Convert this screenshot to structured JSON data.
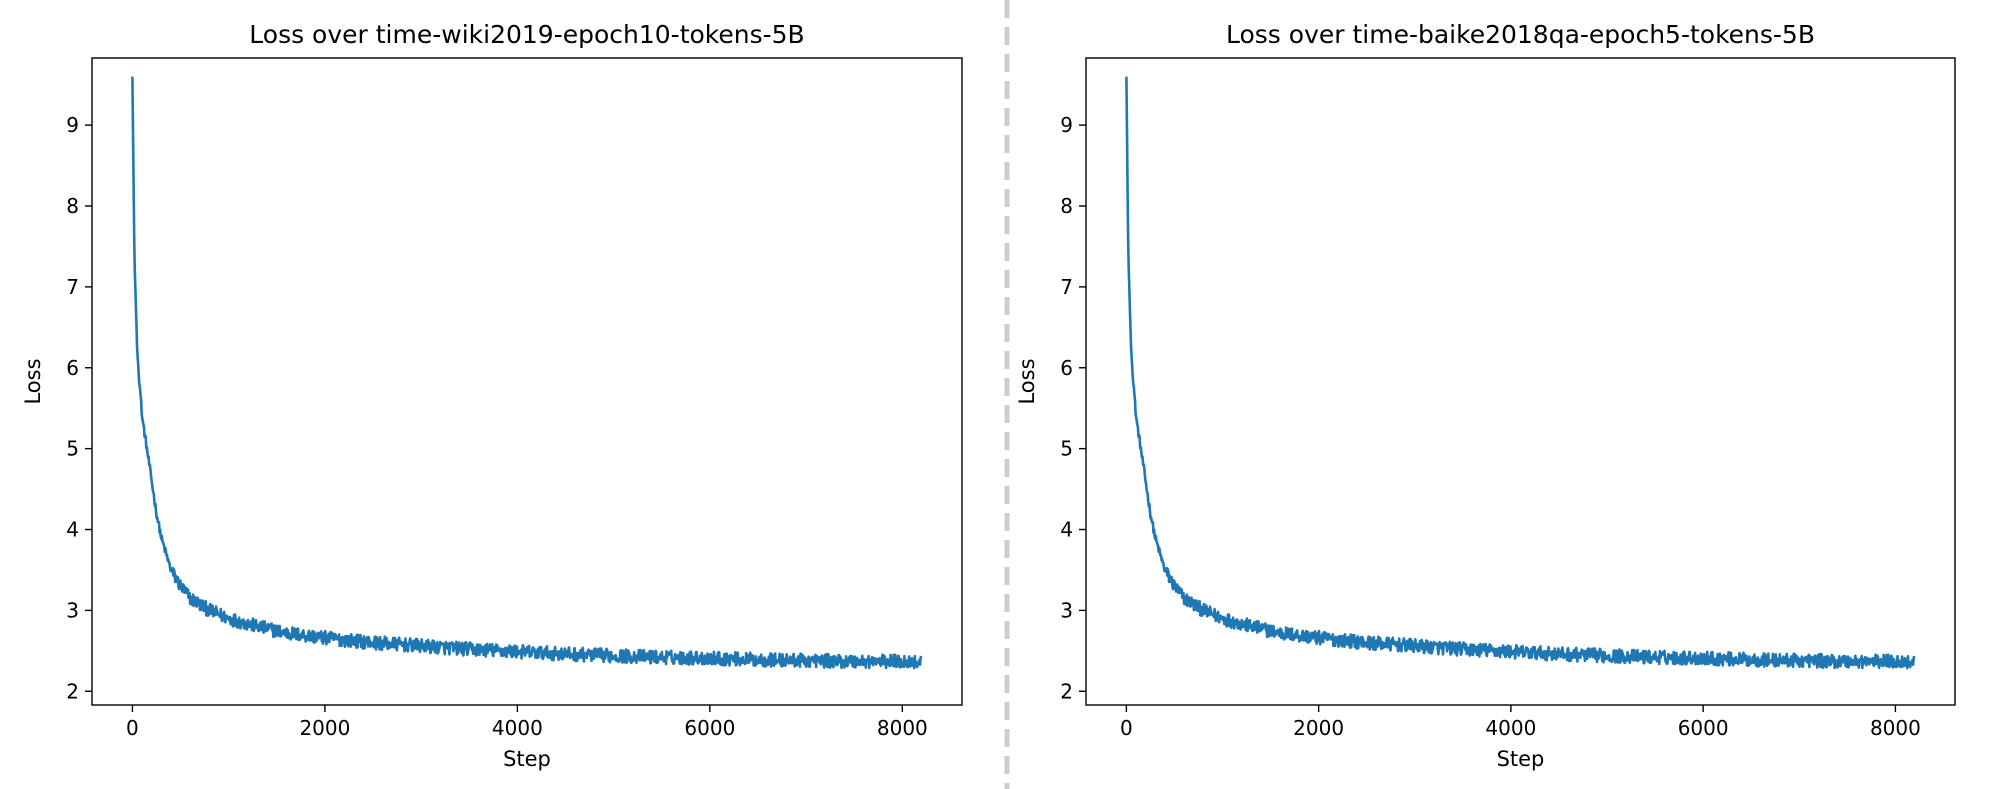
{
  "chart_data": [
    {
      "type": "line",
      "title": "Loss over time-wiki2019-epoch10-tokens-5B",
      "xlabel": "Step",
      "ylabel": "Loss",
      "xlim": [
        -420,
        8620
      ],
      "ylim": [
        1.83,
        9.83
      ],
      "xticks": [
        "0",
        "2000",
        "4000",
        "6000",
        "8000"
      ],
      "yticks": [
        "2",
        "3",
        "4",
        "5",
        "6",
        "7",
        "8",
        "9"
      ],
      "grid": false,
      "series": [
        {
          "color": "#1f77b4",
          "x": [
            0,
            20,
            50,
            100,
            150,
            200,
            250,
            300,
            400,
            500,
            600,
            800,
            1000,
            1300,
            1600,
            2000,
            2500,
            3000,
            3500,
            4000,
            4500,
            5000,
            5500,
            6000,
            6500,
            7000,
            7500,
            8000,
            8200
          ],
          "y": [
            9.6,
            7.4,
            6.2,
            5.4,
            5.0,
            4.6,
            4.2,
            3.9,
            3.5,
            3.3,
            3.15,
            3.0,
            2.9,
            2.8,
            2.72,
            2.66,
            2.6,
            2.56,
            2.52,
            2.49,
            2.46,
            2.44,
            2.42,
            2.41,
            2.39,
            2.38,
            2.37,
            2.37,
            2.36
          ]
        }
      ]
    },
    {
      "type": "line",
      "title": "Loss over time-baike2018qa-epoch5-tokens-5B",
      "xlabel": "Step",
      "ylabel": "Loss",
      "xlim": [
        -420,
        8620
      ],
      "ylim": [
        1.83,
        9.83
      ],
      "xticks": [
        "0",
        "2000",
        "4000",
        "6000",
        "8000"
      ],
      "yticks": [
        "2",
        "3",
        "4",
        "5",
        "6",
        "7",
        "8",
        "9"
      ],
      "grid": false,
      "series": [
        {
          "color": "#1f77b4",
          "x": [
            0,
            20,
            50,
            100,
            150,
            200,
            250,
            300,
            400,
            500,
            600,
            800,
            1000,
            1300,
            1600,
            2000,
            2500,
            3000,
            3500,
            4000,
            4500,
            5000,
            5500,
            6000,
            6500,
            7000,
            7500,
            8000,
            8200
          ],
          "y": [
            9.6,
            7.4,
            6.2,
            5.4,
            5.0,
            4.6,
            4.2,
            3.9,
            3.5,
            3.3,
            3.15,
            3.0,
            2.9,
            2.8,
            2.72,
            2.66,
            2.6,
            2.56,
            2.52,
            2.49,
            2.46,
            2.44,
            2.42,
            2.41,
            2.39,
            2.38,
            2.37,
            2.37,
            2.36
          ]
        }
      ]
    }
  ],
  "divider": {
    "color": "#cccccc"
  }
}
